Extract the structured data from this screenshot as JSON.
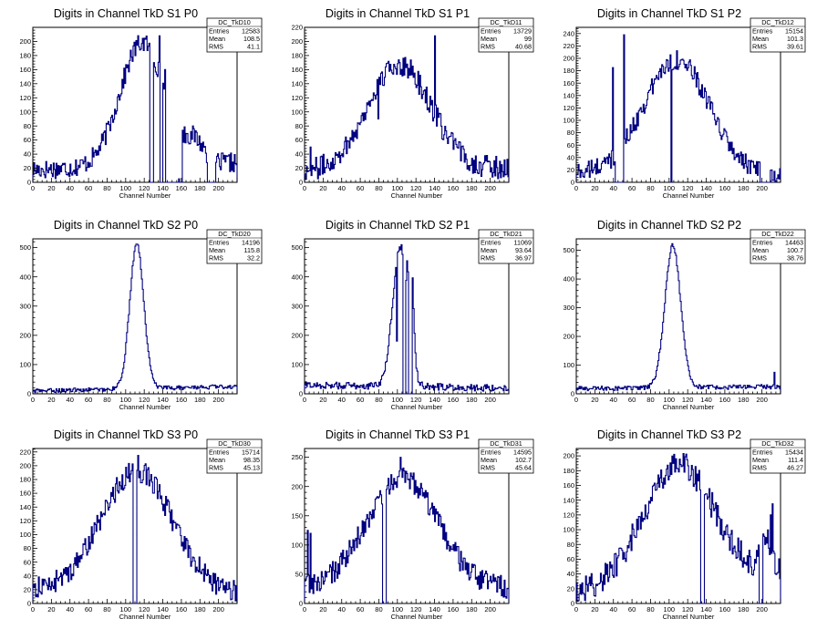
{
  "colors": {
    "line": "#000080",
    "frame": "#000000",
    "background": "#ffffff"
  },
  "chart_data": [
    {
      "type": "histogram",
      "title": "Digits in Channel TkD S1 P0",
      "xlabel": "Channel Number",
      "ylabel": "",
      "xlim": [
        0,
        220
      ],
      "ylim": [
        0,
        220
      ],
      "xticks": [
        0,
        20,
        40,
        60,
        80,
        100,
        120,
        140,
        160,
        180,
        200
      ],
      "yticks": [
        0,
        20,
        40,
        60,
        80,
        100,
        120,
        140,
        160,
        180,
        200
      ],
      "stats": {
        "name": "DC_TkD10",
        "entries": "12583",
        "mean": "108.5",
        "rms": "41.1"
      },
      "peak": {
        "mean": 118,
        "sigma": 24,
        "amp": 175
      },
      "baseline": [
        18,
        28
      ],
      "noise": 14,
      "zero_ranges": [
        [
          126,
          130
        ],
        [
          137,
          139
        ],
        [
          143,
          160
        ],
        [
          188,
          196
        ]
      ],
      "spikes": [
        [
          136,
          208
        ],
        [
          130,
          170
        ],
        [
          142,
          160
        ],
        [
          157,
          5
        ]
      ],
      "shoulder": {
        "center": 175,
        "sigma": 10,
        "amp": 28
      }
    },
    {
      "type": "histogram",
      "title": "Digits in Channel TkD S1 P1",
      "xlabel": "Channel Number",
      "ylabel": "",
      "xlim": [
        0,
        220
      ],
      "ylim": [
        0,
        220
      ],
      "xticks": [
        0,
        20,
        40,
        60,
        80,
        100,
        120,
        140,
        160,
        180,
        200
      ],
      "yticks": [
        0,
        20,
        40,
        60,
        80,
        100,
        120,
        140,
        160,
        180,
        200,
        220
      ],
      "stats": {
        "name": "DC_TkD11",
        "entries": "13729",
        "mean": "99",
        "rms": "40.68"
      },
      "peak": {
        "mean": 102,
        "sigma": 34,
        "amp": 150
      },
      "baseline": [
        15,
        20
      ],
      "noise": 16,
      "zero_ranges": [],
      "spikes": [
        [
          140,
          208
        ],
        [
          102,
          170
        ],
        [
          60,
          85
        ],
        [
          79,
          90
        ],
        [
          6,
          50
        ]
      ],
      "shoulder": null
    },
    {
      "type": "histogram",
      "title": "Digits in Channel TkD S1 P2",
      "xlabel": "Channel Number",
      "ylabel": "",
      "xlim": [
        0,
        220
      ],
      "ylim": [
        0,
        250
      ],
      "xticks": [
        0,
        20,
        40,
        60,
        80,
        100,
        120,
        140,
        160,
        180,
        200
      ],
      "yticks": [
        0,
        20,
        40,
        60,
        80,
        100,
        120,
        140,
        160,
        180,
        200,
        220,
        240
      ],
      "stats": {
        "name": "DC_TkD12",
        "entries": "15154",
        "mean": "101.3",
        "rms": "39.61"
      },
      "peak": {
        "mean": 108,
        "sigma": 35,
        "amp": 185
      },
      "baseline": [
        15,
        10
      ],
      "noise": 16,
      "zero_ranges": [
        [
          42,
          50
        ],
        [
          198,
          208
        ]
      ],
      "spikes": [
        [
          51,
          238
        ],
        [
          39,
          185
        ],
        [
          102,
          0
        ]
      ],
      "shoulder": null
    },
    {
      "type": "histogram",
      "title": "Digits in Channel TkD S2 P0",
      "xlabel": "Channel Number",
      "ylabel": "",
      "xlim": [
        0,
        220
      ],
      "ylim": [
        0,
        530
      ],
      "xticks": [
        0,
        20,
        40,
        60,
        80,
        100,
        120,
        140,
        160,
        180,
        200
      ],
      "yticks": [
        0,
        100,
        200,
        300,
        400,
        500
      ],
      "stats": {
        "name": "DC_TkD20",
        "entries": "14196",
        "mean": "115.8",
        "rms": "32.2"
      },
      "peak": {
        "mean": 112,
        "sigma": 7.5,
        "amp": 495
      },
      "baseline": [
        10,
        25
      ],
      "noise": 7,
      "zero_ranges": [],
      "spikes": [],
      "shoulder": null
    },
    {
      "type": "histogram",
      "title": "Digits in Channel TkD S2 P1",
      "xlabel": "Channel Number",
      "ylabel": "",
      "xlim": [
        0,
        220
      ],
      "ylim": [
        0,
        530
      ],
      "xticks": [
        0,
        20,
        40,
        60,
        80,
        100,
        120,
        140,
        160,
        180,
        200
      ],
      "yticks": [
        0,
        100,
        200,
        300,
        400,
        500
      ],
      "stats": {
        "name": "DC_TkD21",
        "entries": "11069",
        "mean": "93.64",
        "rms": "36.97"
      },
      "peak": {
        "mean": 103,
        "sigma": 8,
        "amp": 480
      },
      "baseline": [
        30,
        20
      ],
      "noise": 12,
      "zero_ranges": [
        [
          106,
          108
        ],
        [
          112,
          115
        ]
      ],
      "spikes": [
        [
          104,
          510
        ],
        [
          110,
          455
        ],
        [
          99,
          180
        ]
      ],
      "shoulder": {
        "center": 115,
        "sigma": 2.5,
        "amp": 300
      }
    },
    {
      "type": "histogram",
      "title": "Digits in Channel TkD S2 P2",
      "xlabel": "Channel Number",
      "ylabel": "",
      "xlim": [
        0,
        220
      ],
      "ylim": [
        0,
        540
      ],
      "xticks": [
        0,
        20,
        40,
        60,
        80,
        100,
        120,
        140,
        160,
        180,
        200
      ],
      "yticks": [
        0,
        100,
        200,
        300,
        400,
        500
      ],
      "stats": {
        "name": "DC_TkD22",
        "entries": "14463",
        "mean": "100.7",
        "rms": "38.76"
      },
      "peak": {
        "mean": 104,
        "sigma": 8.5,
        "amp": 495
      },
      "baseline": [
        18,
        25
      ],
      "noise": 8,
      "zero_ranges": [],
      "spikes": [
        [
          213,
          75
        ]
      ],
      "shoulder": null
    },
    {
      "type": "histogram",
      "title": "Digits in Channel TkD S3 P0",
      "xlabel": "Channel Number",
      "ylabel": "",
      "xlim": [
        0,
        220
      ],
      "ylim": [
        0,
        225
      ],
      "xticks": [
        0,
        20,
        40,
        60,
        80,
        100,
        120,
        140,
        160,
        180,
        200
      ],
      "yticks": [
        0,
        20,
        40,
        60,
        80,
        100,
        120,
        140,
        160,
        180,
        200,
        220
      ],
      "stats": {
        "name": "DC_TkD30",
        "entries": "15714",
        "mean": "98.35",
        "rms": "45.13"
      },
      "peak": {
        "mean": 112,
        "sigma": 38,
        "amp": 175
      },
      "baseline": [
        20,
        15
      ],
      "noise": 16,
      "zero_ranges": [
        [
          108,
          111
        ]
      ],
      "spikes": [
        [
          113,
          215
        ]
      ],
      "shoulder": null
    },
    {
      "type": "histogram",
      "title": "Digits in Channel TkD S3 P1",
      "xlabel": "Channel Number",
      "ylabel": "",
      "xlim": [
        0,
        220
      ],
      "ylim": [
        0,
        265
      ],
      "xticks": [
        0,
        20,
        40,
        60,
        80,
        100,
        120,
        140,
        160,
        180,
        200
      ],
      "yticks": [
        0,
        50,
        100,
        150,
        200,
        250
      ],
      "stats": {
        "name": "DC_TkD31",
        "entries": "14595",
        "mean": "102.7",
        "rms": "45.64"
      },
      "peak": {
        "mean": 105,
        "sigma": 38,
        "amp": 190
      },
      "baseline": [
        25,
        25
      ],
      "noise": 20,
      "zero_ranges": [
        [
          84,
          87
        ]
      ],
      "spikes": [
        [
          103,
          250
        ],
        [
          3,
          125
        ],
        [
          6,
          120
        ]
      ],
      "shoulder": null
    },
    {
      "type": "histogram",
      "title": "Digits in Channel TkD S3 P2",
      "xlabel": "Channel Number",
      "ylabel": "",
      "xlim": [
        0,
        220
      ],
      "ylim": [
        0,
        210
      ],
      "xticks": [
        0,
        20,
        40,
        60,
        80,
        100,
        120,
        140,
        160,
        180,
        200
      ],
      "yticks": [
        0,
        20,
        40,
        60,
        80,
        100,
        120,
        140,
        160,
        180,
        200
      ],
      "stats": {
        "name": "DC_TkD32",
        "entries": "15434",
        "mean": "111.4",
        "rms": "46.27"
      },
      "peak": {
        "mean": 110,
        "sigma": 38,
        "amp": 160
      },
      "baseline": [
        15,
        40
      ],
      "noise": 18,
      "zero_ranges": [
        [
          134,
          137
        ],
        [
          197,
          200
        ]
      ],
      "spikes": [
        [
          105,
          202
        ],
        [
          211,
          135
        ],
        [
          209,
          120
        ]
      ],
      "shoulder": {
        "center": 205,
        "sigma": 6,
        "amp": 45
      }
    }
  ],
  "labels": {
    "entries": "Entries",
    "mean": "Mean",
    "rms": "RMS"
  }
}
